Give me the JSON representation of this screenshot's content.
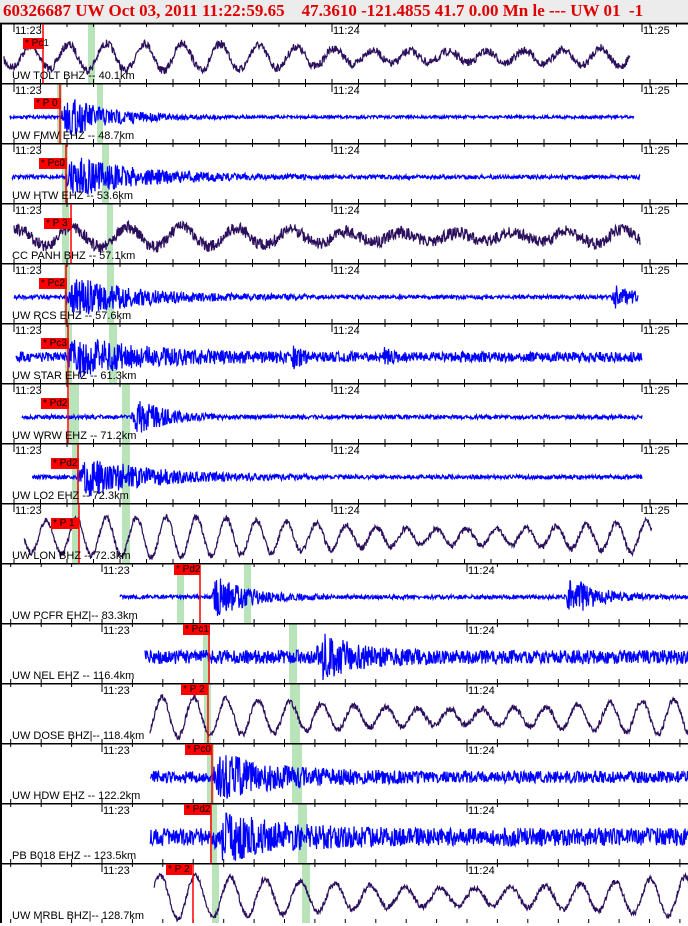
{
  "header": {
    "title": "60326687 UW Oct 03, 2011 11:22:59.65    47.3610 -121.4855 41.7 0.00 Mn le --- UW 01  -1"
  },
  "colors": {
    "broadband": "#2b0f5c",
    "shortperiod": "#0000ff",
    "pick": "#ff0000",
    "window": "#b9e3b9",
    "header_text": "#e00000"
  },
  "panels": [
    {
      "label": "UW TOLT BHZ -- 40.1km",
      "pick": "* Pc1",
      "times": [
        "11:23",
        "11:24",
        "11:25"
      ]
    },
    {
      "label": "UW FMW EHZ -- 48.7km",
      "pick": "* P 0",
      "times": [
        "11:23",
        "11:24",
        "11:25"
      ]
    },
    {
      "label": "UW HTW EHZ -- 53.6km",
      "pick": "* Pc0",
      "times": [
        "11:23",
        "11:24",
        "11:25"
      ]
    },
    {
      "label": "CC PANH BHZ -- 57.1km",
      "pick": "* P 3",
      "times": [
        "11:23",
        "11:24",
        "11:25"
      ]
    },
    {
      "label": "UW RCS EHZ -- 57.6km",
      "pick": "* Pc2",
      "times": [
        "11:23",
        "11:24",
        "11:25"
      ]
    },
    {
      "label": "UW STAR EHZ -- 61.3km",
      "pick": "* Pc3",
      "times": [
        "11:23",
        "11:24",
        "11:25"
      ]
    },
    {
      "label": "UW WRW EHZ -- 71.2km",
      "pick": "* Pd2",
      "times": [
        "11:23",
        "11:24",
        "11:25"
      ]
    },
    {
      "label": "UW LO2 EHZ -- 72.3km",
      "pick": "* Pd2",
      "times": [
        "11:23",
        "11:24",
        "11:25"
      ]
    },
    {
      "label": "UW LON BHZ -- 72.3km",
      "pick": "* P 1",
      "times": [
        "11:23",
        "11:24",
        "11:25"
      ]
    },
    {
      "label": "UW PCFR EHZ|-- 83.3km",
      "pick": "* Pd2",
      "times": [
        "11:23",
        "11:24"
      ]
    },
    {
      "label": "UW NEL EHZ -- 116.4km",
      "pick": "* Pc1",
      "times": [
        "11:23",
        "11:24"
      ]
    },
    {
      "label": "UW DOSE BHZ|-- 118.4km",
      "pick": "* P 2",
      "times": [
        "11:23",
        "11:24"
      ]
    },
    {
      "label": "UW HDW EHZ -- 122.2km",
      "pick": "* Pc0",
      "times": [
        "11:23",
        "11:24"
      ]
    },
    {
      "label": "PB B018 EHZ -- 123.5km",
      "pick": "* Pd2",
      "times": [
        "11:23",
        "11:24"
      ]
    },
    {
      "label": "UW MRBL BHZ|-- 128.7km",
      "pick": "* P 2",
      "times": [
        "11:23",
        "11:24"
      ]
    }
  ]
}
